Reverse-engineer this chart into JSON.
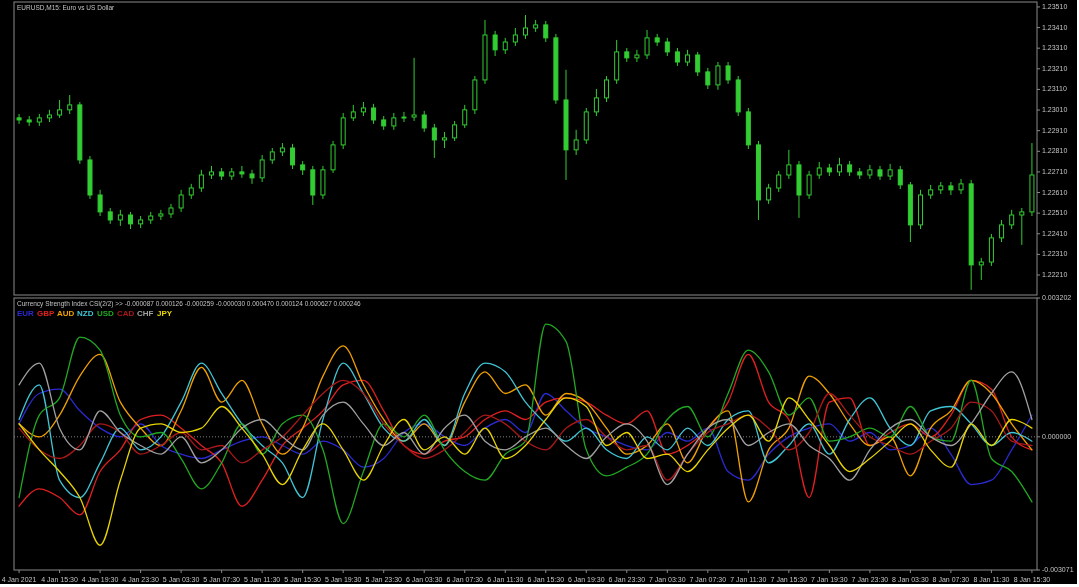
{
  "chart_data": [
    {
      "type": "candlestick",
      "title": "EURUSD,M15:  Euro vs US Dollar",
      "color": "#32cd32",
      "tick_labels": "y",
      "xlim": [
        "2021-01-04T11:00",
        "2021-01-08T16:00"
      ],
      "ylim": [
        1.22113,
        1.23534
      ],
      "yticks": [
        {
          "value": 1.2351,
          "label": "1.23510"
        },
        {
          "value": 1.2341,
          "label": "1.23410"
        },
        {
          "value": 1.2331,
          "label": "1.23310"
        },
        {
          "value": 1.2321,
          "label": "1.23210"
        },
        {
          "value": 1.2311,
          "label": "1.23110"
        },
        {
          "value": 1.2301,
          "label": "1.23010"
        },
        {
          "value": 1.2291,
          "label": "1.22910"
        },
        {
          "value": 1.2281,
          "label": "1.22810"
        },
        {
          "value": 1.2271,
          "label": "1.22710"
        },
        {
          "value": 1.2261,
          "label": "1.22610"
        },
        {
          "value": 1.2251,
          "label": "1.22510"
        },
        {
          "value": 1.2241,
          "label": "1.22410"
        },
        {
          "value": 1.2231,
          "label": "1.22310"
        },
        {
          "value": 1.2221,
          "label": "1.22210"
        }
      ],
      "x": [
        "2021-01-04T11:30",
        "2021-01-04T12:30",
        "2021-01-04T13:30",
        "2021-01-04T14:30",
        "2021-01-04T15:30",
        "2021-01-04T16:30",
        "2021-01-04T17:30",
        "2021-01-04T18:30",
        "2021-01-04T19:30",
        "2021-01-04T20:30",
        "2021-01-04T21:30",
        "2021-01-04T22:30",
        "2021-01-04T23:30",
        "2021-01-05T00:30",
        "2021-01-05T01:30",
        "2021-01-05T02:30",
        "2021-01-05T03:30",
        "2021-01-05T04:30",
        "2021-01-05T05:30",
        "2021-01-05T06:30",
        "2021-01-05T07:30",
        "2021-01-05T08:30",
        "2021-01-05T09:30",
        "2021-01-05T10:30",
        "2021-01-05T11:30",
        "2021-01-05T12:30",
        "2021-01-05T13:30",
        "2021-01-05T14:30",
        "2021-01-05T15:30",
        "2021-01-05T16:30",
        "2021-01-05T17:30",
        "2021-01-05T18:30",
        "2021-01-05T19:30",
        "2021-01-05T20:30",
        "2021-01-05T21:30",
        "2021-01-05T22:30",
        "2021-01-05T23:30",
        "2021-01-06T00:30",
        "2021-01-06T01:30",
        "2021-01-06T02:30",
        "2021-01-06T03:30",
        "2021-01-06T04:30",
        "2021-01-06T05:30",
        "2021-01-06T06:30",
        "2021-01-06T07:30",
        "2021-01-06T08:30",
        "2021-01-06T09:30",
        "2021-01-06T10:30",
        "2021-01-06T11:30",
        "2021-01-06T12:30",
        "2021-01-06T13:30",
        "2021-01-06T14:30",
        "2021-01-06T15:30",
        "2021-01-06T16:30",
        "2021-01-06T17:30",
        "2021-01-06T18:30",
        "2021-01-06T19:30",
        "2021-01-06T20:30",
        "2021-01-06T21:30",
        "2021-01-06T22:30",
        "2021-01-06T23:30",
        "2021-01-07T00:30",
        "2021-01-07T01:30",
        "2021-01-07T02:30",
        "2021-01-07T03:30",
        "2021-01-07T04:30",
        "2021-01-07T05:30",
        "2021-01-07T06:30",
        "2021-01-07T07:30",
        "2021-01-07T08:30",
        "2021-01-07T09:30",
        "2021-01-07T10:30",
        "2021-01-07T11:30",
        "2021-01-07T12:30",
        "2021-01-07T13:30",
        "2021-01-07T14:30",
        "2021-01-07T15:30",
        "2021-01-07T16:30",
        "2021-01-07T17:30",
        "2021-01-07T18:30",
        "2021-01-07T19:30",
        "2021-01-07T20:30",
        "2021-01-07T21:30",
        "2021-01-07T22:30",
        "2021-01-07T23:30",
        "2021-01-08T00:30",
        "2021-01-08T01:30",
        "2021-01-08T02:30",
        "2021-01-08T03:30",
        "2021-01-08T04:30",
        "2021-01-08T05:30",
        "2021-01-08T06:30",
        "2021-01-08T07:30",
        "2021-01-08T08:30",
        "2021-01-08T09:30",
        "2021-01-08T10:30",
        "2021-01-08T11:30",
        "2021-01-08T12:30",
        "2021-01-08T13:30",
        "2021-01-08T14:30",
        "2021-01-08T15:30"
      ],
      "ohlc": [
        [
          1.22972,
          1.22991,
          1.22943,
          1.22962
        ],
        [
          1.22962,
          1.22981,
          1.22933,
          1.22952
        ],
        [
          1.22952,
          1.22991,
          1.22933,
          1.22972
        ],
        [
          1.22972,
          1.23011,
          1.22952,
          1.22986
        ],
        [
          1.22986,
          1.23059,
          1.22972,
          1.23011
        ],
        [
          1.23011,
          1.23083,
          1.22991,
          1.23035
        ],
        [
          1.23035,
          1.23049,
          1.22749,
          1.22768
        ],
        [
          1.22768,
          1.22787,
          1.22579,
          1.22598
        ],
        [
          1.22598,
          1.22623,
          1.22496,
          1.22516
        ],
        [
          1.22516,
          1.22535,
          1.22458,
          1.22477
        ],
        [
          1.22477,
          1.22526,
          1.22448,
          1.22501
        ],
        [
          1.22501,
          1.22516,
          1.22433,
          1.22458
        ],
        [
          1.22458,
          1.22496,
          1.22438,
          1.22477
        ],
        [
          1.22477,
          1.22516,
          1.22458,
          1.22496
        ],
        [
          1.22496,
          1.22526,
          1.22477,
          1.22506
        ],
        [
          1.22506,
          1.22555,
          1.22487,
          1.22535
        ],
        [
          1.22535,
          1.22623,
          1.22516,
          1.22598
        ],
        [
          1.22598,
          1.22652,
          1.22579,
          1.22632
        ],
        [
          1.22632,
          1.2272,
          1.22613,
          1.22695
        ],
        [
          1.22695,
          1.22739,
          1.22676,
          1.2271
        ],
        [
          1.2271,
          1.22729,
          1.22671,
          1.2269
        ],
        [
          1.2269,
          1.22729,
          1.22671,
          1.2271
        ],
        [
          1.2271,
          1.22739,
          1.22681,
          1.227
        ],
        [
          1.227,
          1.2272,
          1.22652,
          1.22681
        ],
        [
          1.22681,
          1.22792,
          1.22661,
          1.22768
        ],
        [
          1.22768,
          1.22826,
          1.22749,
          1.22807
        ],
        [
          1.22807,
          1.2285,
          1.22787,
          1.22826
        ],
        [
          1.22826,
          1.22846,
          1.22724,
          1.22744
        ],
        [
          1.22744,
          1.22763,
          1.22695,
          1.2272
        ],
        [
          1.2272,
          1.22739,
          1.2255,
          1.22598
        ],
        [
          1.22598,
          1.22739,
          1.22579,
          1.2272
        ],
        [
          1.2272,
          1.2286,
          1.22705,
          1.22841
        ],
        [
          1.22841,
          1.22996,
          1.22821,
          1.22972
        ],
        [
          1.22972,
          1.23035,
          1.22957,
          1.23001
        ],
        [
          1.23001,
          1.23049,
          1.22981,
          1.2302
        ],
        [
          1.2302,
          1.2304,
          1.22943,
          1.22962
        ],
        [
          1.22962,
          1.22981,
          1.22914,
          1.22933
        ],
        [
          1.22933,
          1.22996,
          1.22914,
          1.22972
        ],
        [
          1.22972,
          1.23001,
          1.22952,
          1.22976
        ],
        [
          1.22976,
          1.23263,
          1.22957,
          1.22986
        ],
        [
          1.22986,
          1.23006,
          1.22904,
          1.22923
        ],
        [
          1.22923,
          1.22943,
          1.22778,
          1.22865
        ],
        [
          1.22865,
          1.22904,
          1.22826,
          1.22875
        ],
        [
          1.22875,
          1.22957,
          1.2286,
          1.22938
        ],
        [
          1.22938,
          1.23035,
          1.22923,
          1.23011
        ],
        [
          1.23011,
          1.23175,
          1.22991,
          1.23156
        ],
        [
          1.23156,
          1.23447,
          1.23137,
          1.23374
        ],
        [
          1.23374,
          1.23394,
          1.23272,
          1.23302
        ],
        [
          1.23302,
          1.2336,
          1.23282,
          1.2334
        ],
        [
          1.2334,
          1.23408,
          1.23321,
          1.23374
        ],
        [
          1.23374,
          1.23471,
          1.23355,
          1.23408
        ],
        [
          1.23408,
          1.23447,
          1.23389,
          1.23423
        ],
        [
          1.23423,
          1.23442,
          1.2334,
          1.2336
        ],
        [
          1.2336,
          1.23379,
          1.2304,
          1.23059
        ],
        [
          1.23059,
          1.23205,
          1.22671,
          1.22817
        ],
        [
          1.22817,
          1.22914,
          1.22792,
          1.22865
        ],
        [
          1.22865,
          1.2302,
          1.22846,
          1.23001
        ],
        [
          1.23001,
          1.23112,
          1.22981,
          1.23069
        ],
        [
          1.23069,
          1.23175,
          1.23049,
          1.23156
        ],
        [
          1.23156,
          1.2335,
          1.23137,
          1.23292
        ],
        [
          1.23292,
          1.23311,
          1.23243,
          1.23263
        ],
        [
          1.23263,
          1.23302,
          1.23243,
          1.23277
        ],
        [
          1.23277,
          1.23398,
          1.23258,
          1.2336
        ],
        [
          1.2336,
          1.23379,
          1.23321,
          1.2334
        ],
        [
          1.2334,
          1.2336,
          1.23272,
          1.23292
        ],
        [
          1.23292,
          1.23311,
          1.23224,
          1.23243
        ],
        [
          1.23243,
          1.23302,
          1.23224,
          1.23277
        ],
        [
          1.23277,
          1.23292,
          1.23175,
          1.23195
        ],
        [
          1.23195,
          1.23214,
          1.23112,
          1.23132
        ],
        [
          1.23132,
          1.23243,
          1.23108,
          1.23224
        ],
        [
          1.23224,
          1.23243,
          1.23137,
          1.23156
        ],
        [
          1.23156,
          1.23175,
          1.22981,
          1.23001
        ],
        [
          1.23001,
          1.2302,
          1.22821,
          1.22841
        ],
        [
          1.22841,
          1.2286,
          1.22477,
          1.22574
        ],
        [
          1.22574,
          1.22652,
          1.22555,
          1.22632
        ],
        [
          1.22632,
          1.22715,
          1.22613,
          1.22695
        ],
        [
          1.22695,
          1.22817,
          1.22676,
          1.22744
        ],
        [
          1.22744,
          1.22763,
          1.22487,
          1.22598
        ],
        [
          1.22598,
          1.22715,
          1.22579,
          1.22695
        ],
        [
          1.22695,
          1.22758,
          1.22676,
          1.22729
        ],
        [
          1.22729,
          1.22749,
          1.2269,
          1.2271
        ],
        [
          1.2271,
          1.22778,
          1.2269,
          1.22744
        ],
        [
          1.22744,
          1.22763,
          1.2269,
          1.2271
        ],
        [
          1.2271,
          1.22729,
          1.22676,
          1.22695
        ],
        [
          1.22695,
          1.22744,
          1.22676,
          1.2272
        ],
        [
          1.2272,
          1.22739,
          1.22671,
          1.2269
        ],
        [
          1.2269,
          1.22749,
          1.22671,
          1.2272
        ],
        [
          1.2272,
          1.22739,
          1.22627,
          1.22647
        ],
        [
          1.22647,
          1.22661,
          1.2237,
          1.22453
        ],
        [
          1.22453,
          1.22623,
          1.22433,
          1.22598
        ],
        [
          1.22598,
          1.22647,
          1.22579,
          1.22623
        ],
        [
          1.22623,
          1.22661,
          1.22603,
          1.22642
        ],
        [
          1.22642,
          1.22661,
          1.22598,
          1.22623
        ],
        [
          1.22623,
          1.22676,
          1.22603,
          1.22652
        ],
        [
          1.22652,
          1.22671,
          1.22138,
          1.22259
        ],
        [
          1.22259,
          1.22293,
          1.22186,
          1.22273
        ],
        [
          1.22273,
          1.22409,
          1.22254,
          1.2239
        ],
        [
          1.2239,
          1.22477,
          1.2237,
          1.22453
        ],
        [
          1.22453,
          1.22526,
          1.22433,
          1.22501
        ],
        [
          1.22501,
          1.22535,
          1.22356,
          1.22516
        ],
        [
          1.22516,
          1.2285,
          1.22496,
          1.22695
        ]
      ]
    },
    {
      "type": "line",
      "title": "Currency Strength Index CSI(2/2) >> -0.000087 0.000126 -0.000259 -0.000030 0.000470 0.000124 0.000627 0.000246",
      "legend": "top left",
      "xlim": [
        "2021-01-04T11:00",
        "2021-01-08T16:00"
      ],
      "ylim": [
        -0.003071,
        0.003202
      ],
      "yticks": [
        0.003202,
        {
          "value": 0,
          "label": "0.000000"
        },
        -0.003071
      ],
      "xticks": [
        {
          "value": "2021-01-04T11:30",
          "label": "4 Jan 2021"
        },
        {
          "value": "2021-01-04T15:30",
          "label": "4 Jan 15:30"
        },
        {
          "value": "2021-01-04T19:30",
          "label": "4 Jan 19:30"
        },
        {
          "value": "2021-01-04T23:30",
          "label": "4 Jan 23:30"
        },
        {
          "value": "2021-01-05T03:30",
          "label": "5 Jan 03:30"
        },
        {
          "value": "2021-01-05T07:30",
          "label": "5 Jan 07:30"
        },
        {
          "value": "2021-01-05T11:30",
          "label": "5 Jan 11:30"
        },
        {
          "value": "2021-01-05T15:30",
          "label": "5 Jan 15:30"
        },
        {
          "value": "2021-01-05T19:30",
          "label": "5 Jan 19:30"
        },
        {
          "value": "2021-01-05T23:30",
          "label": "5 Jan 23:30"
        },
        {
          "value": "2021-01-06T03:30",
          "label": "6 Jan 03:30"
        },
        {
          "value": "2021-01-06T07:30",
          "label": "6 Jan 07:30"
        },
        {
          "value": "2021-01-06T11:30",
          "label": "6 Jan 11:30"
        },
        {
          "value": "2021-01-06T15:30",
          "label": "6 Jan 15:30"
        },
        {
          "value": "2021-01-06T19:30",
          "label": "6 Jan 19:30"
        },
        {
          "value": "2021-01-06T23:30",
          "label": "6 Jan 23:30"
        },
        {
          "value": "2021-01-07T03:30",
          "label": "7 Jan 03:30"
        },
        {
          "value": "2021-01-07T07:30",
          "label": "7 Jan 07:30"
        },
        {
          "value": "2021-01-07T11:30",
          "label": "7 Jan 11:30"
        },
        {
          "value": "2021-01-07T15:30",
          "label": "7 Jan 15:30"
        },
        {
          "value": "2021-01-07T19:30",
          "label": "7 Jan 19:30"
        },
        {
          "value": "2021-01-07T23:30",
          "label": "7 Jan 23:30"
        },
        {
          "value": "2021-01-08T03:30",
          "label": "8 Jan 03:30"
        },
        {
          "value": "2021-01-08T07:30",
          "label": "8 Jan 07:30"
        },
        {
          "value": "2021-01-08T11:30",
          "label": "8 Jan 11:30"
        },
        {
          "value": "2021-01-08T15:30",
          "label": "8 Jan 15:30"
        }
      ],
      "ref_lines": [
        {
          "axis": "y",
          "value": 0,
          "color": "#808080",
          "line_style": "dotted"
        }
      ],
      "x": [
        "2021-01-04T11:30",
        "2021-01-04T13:30",
        "2021-01-04T15:30",
        "2021-01-04T17:30",
        "2021-01-04T19:30",
        "2021-01-04T21:30",
        "2021-01-04T23:30",
        "2021-01-05T01:30",
        "2021-01-05T03:30",
        "2021-01-05T05:30",
        "2021-01-05T07:30",
        "2021-01-05T09:30",
        "2021-01-05T11:30",
        "2021-01-05T13:30",
        "2021-01-05T15:30",
        "2021-01-05T17:30",
        "2021-01-05T19:30",
        "2021-01-05T21:30",
        "2021-01-05T23:30",
        "2021-01-06T01:30",
        "2021-01-06T03:30",
        "2021-01-06T05:30",
        "2021-01-06T07:30",
        "2021-01-06T09:30",
        "2021-01-06T11:30",
        "2021-01-06T13:30",
        "2021-01-06T15:30",
        "2021-01-06T17:30",
        "2021-01-06T19:30",
        "2021-01-06T21:30",
        "2021-01-06T23:30",
        "2021-01-07T01:30",
        "2021-01-07T03:30",
        "2021-01-07T05:30",
        "2021-01-07T07:30",
        "2021-01-07T09:30",
        "2021-01-07T11:30",
        "2021-01-07T13:30",
        "2021-01-07T15:30",
        "2021-01-07T17:30",
        "2021-01-07T19:30",
        "2021-01-07T21:30",
        "2021-01-07T23:30",
        "2021-01-08T01:30",
        "2021-01-08T03:30",
        "2021-01-08T05:30",
        "2021-01-08T07:30",
        "2021-01-08T09:30",
        "2021-01-08T11:30",
        "2021-01-08T13:30",
        "2021-01-08T15:30"
      ],
      "series": [
        {
          "name": "EUR",
          "color": "#2a2ad0",
          "values": [
            0.0003,
            0.001,
            0.0011,
            0.0006,
            0.0002,
            0,
            0.0003,
            -0.0002,
            -0.0004,
            -0.0005,
            -0.0003,
            -0.0001,
            0,
            -0.0002,
            -0.0004,
            -0.0001,
            -0.0003,
            -0.0007,
            -0.0005,
            0.0001,
            0.0003,
            0,
            -0.0002,
            0.0002,
            0.0004,
            0.0001,
            0.001,
            0.0006,
            0.0002,
            0,
            -0.0002,
            -0.0003,
            0.0001,
            -0.0001,
            0.0002,
            -0.0008,
            -0.001,
            -0.0004,
            0,
            0.0002,
            0.0003,
            -0.0001,
            0.0001,
            -0.0003,
            -0.0002,
            0.0002,
            -0.0004,
            -0.0011,
            -0.001,
            -0.0003,
            0.0005
          ]
        },
        {
          "name": "GBP",
          "color": "#e02020",
          "values": [
            -0.0016,
            -0.0012,
            -0.0014,
            -0.0018,
            -0.0008,
            -0.0003,
            0.0004,
            0.0005,
            0.0002,
            -0.0002,
            -0.0006,
            -0.0016,
            -0.001,
            -0.0002,
            0.0002,
            0.0006,
            0.0012,
            0.0013,
            0.0006,
            -0.0002,
            -0.0004,
            -0.0001,
            0,
            0.0004,
            0.0006,
            0.0004,
            0.0008,
            0.0009,
            0.0008,
            0.0005,
            0.0003,
            0.0006,
            -0.0004,
            -0.0002,
            0.0002,
            0.0008,
            0.0019,
            0.0008,
            0.0004,
            -0.0014,
            0.0008,
            0.0009,
            -0.0002,
            0.0001,
            0.0003,
            0,
            0.0005,
            0.0013,
            0.0011,
            0,
            -0.0003
          ]
        },
        {
          "name": "AUD",
          "color": "#f0a000",
          "values": [
            0.0003,
            0,
            0.0005,
            0.0014,
            0.0019,
            0.0008,
            0.0002,
            -0.0002,
            0.0006,
            0.0016,
            0.0008,
            0.0013,
            0.0003,
            -0.0004,
            0.0002,
            0.0014,
            0.0021,
            0.0012,
            0.0004,
            -0.0001,
            0.0003,
            -0.0002,
            0.0008,
            0.0015,
            0.001,
            0.0012,
            0.0005,
            0.001,
            0.0008,
            0.0002,
            -0.0004,
            -0.0002,
            0.0003,
            -0.0006,
            0.0002,
            0.0006,
            -0.0015,
            -0.0003,
            0.0002,
            0.0014,
            0.001,
            0.0003,
            -0.0002,
            0,
            -0.0009,
            0.0002,
            0.0006,
            0.0013,
            0.001,
            0.0003,
            -0.0003
          ]
        },
        {
          "name": "NZD",
          "color": "#40c4d4",
          "values": [
            0.0004,
            0.0012,
            -0.001,
            -0.0014,
            -0.0006,
            0.0002,
            -0.0003,
            0,
            0.0008,
            0.0017,
            0.001,
            0.0003,
            -0.0002,
            -0.0006,
            -0.0014,
            0.0004,
            0.0017,
            0.001,
            0.0002,
            -0.0001,
            0.0004,
            -0.0002,
            0.001,
            0.0017,
            0.0015,
            0.0008,
            0.0003,
            -0.0001,
            0.0002,
            -0.0003,
            -0.0005,
            0,
            -0.0003,
            0.0002,
            -0.0002,
            0.0004,
            0.0006,
            -0.0006,
            -0.0002,
            0.0003,
            -0.0004,
            0.0004,
            0.0009,
            0.0002,
            -0.0002,
            0.0006,
            0.0007,
            0.0003,
            -0.0002,
            0.0001,
            -0.0001
          ]
        },
        {
          "name": "USD",
          "color": "#22a822",
          "values": [
            -0.0014,
            0.0005,
            0.0009,
            0.0023,
            0.002,
            0.0005,
            0,
            0.0001,
            -0.0005,
            -0.0012,
            -0.0006,
            0.0003,
            -0.0004,
            0.0003,
            0.0005,
            -0.0003,
            -0.002,
            -0.0008,
            0.0003,
            0,
            0.0005,
            -0.0003,
            -0.0008,
            -0.001,
            -0.0004,
            -0.0001,
            0.0026,
            0.0022,
            -0.0003,
            -0.0009,
            -0.0007,
            -0.0004,
            0.0004,
            0.0007,
            0,
            0.001,
            0.002,
            0.0015,
            0.0005,
            0.0009,
            -0.0001,
            0,
            0.0002,
            0,
            0.0007,
            0,
            -0.0001,
            0.0013,
            -0.0005,
            -0.0008,
            -0.0015
          ]
        },
        {
          "name": "CAD",
          "color": "#a81818",
          "values": [
            0.0002,
            -0.0003,
            -0.0005,
            -0.0002,
            0.0003,
            0.0001,
            -0.0004,
            -0.0002,
            0.0001,
            -0.0003,
            -0.0002,
            -0.0006,
            -0.0003,
            0,
            0.0005,
            0.001,
            0.0013,
            0.001,
            0.0003,
            -0.0002,
            -0.0005,
            -0.0003,
            0.0001,
            0.0005,
            0.0003,
            -0.0001,
            -0.0003,
            0.0002,
            0.0004,
            0,
            -0.0003,
            -0.0002,
            -0.001,
            -0.0004,
            0.0001,
            0.0003,
            0.0005,
            0.0002,
            -0.0003,
            0.0001,
            0.001,
            0.0005,
            0,
            -0.0002,
            -0.0004,
            -0.0001,
            0.0002,
            0.0008,
            0.0006,
            -0.0001,
            -0.0002
          ]
        },
        {
          "name": "CHF",
          "color": "#a0a0a0",
          "values": [
            0.0012,
            0.0017,
            0.0002,
            -0.0003,
            0.0006,
            0.0001,
            -0.0002,
            -0.0004,
            0,
            -0.0006,
            -0.0003,
            0.0002,
            0.0004,
            0,
            -0.0003,
            0.0005,
            0.0008,
            0.0003,
            -0.0002,
            0.0001,
            -0.0004,
            0.0002,
            0.0005,
            -0.0001,
            -0.0003,
            0,
            0.0002,
            -0.0002,
            -0.0005,
            0,
            0.0003,
            -0.0001,
            -0.0011,
            -0.0004,
            0.0002,
            0.0004,
            -0.0002,
            0.0001,
            0.0003,
            -0.0002,
            -0.0005,
            -0.001,
            -0.0003,
            0.0002,
            0.0004,
            0,
            -0.0002,
            0.0003,
            0.001,
            0.0015,
            0.0004
          ]
        },
        {
          "name": "JPY",
          "color": "#e8d400",
          "values": [
            0.0003,
            -0.0003,
            -0.0008,
            -0.0014,
            -0.0025,
            -0.001,
            0.0002,
            0.0003,
            0.0001,
            0.0002,
            0.0007,
            0.0002,
            -0.0004,
            -0.0011,
            -0.0003,
            0.0003,
            -0.0003,
            -0.001,
            -0.0002,
            0.0004,
            -0.0003,
            0,
            -0.0004,
            0.0002,
            -0.0005,
            -0.0002,
            0.0004,
            0.0009,
            0.0007,
            -0.0002,
            0.0001,
            -0.0005,
            -0.0004,
            -0.0008,
            -0.0003,
            0.0002,
            0.0005,
            -0.0001,
            0.0009,
            0.0004,
            -0.0002,
            -0.0008,
            -0.0005,
            -0.0001,
            0.0003,
            -0.0003,
            -0.0007,
            0.0003,
            -0.0002,
            0.0004,
            0.0002
          ]
        }
      ]
    }
  ]
}
